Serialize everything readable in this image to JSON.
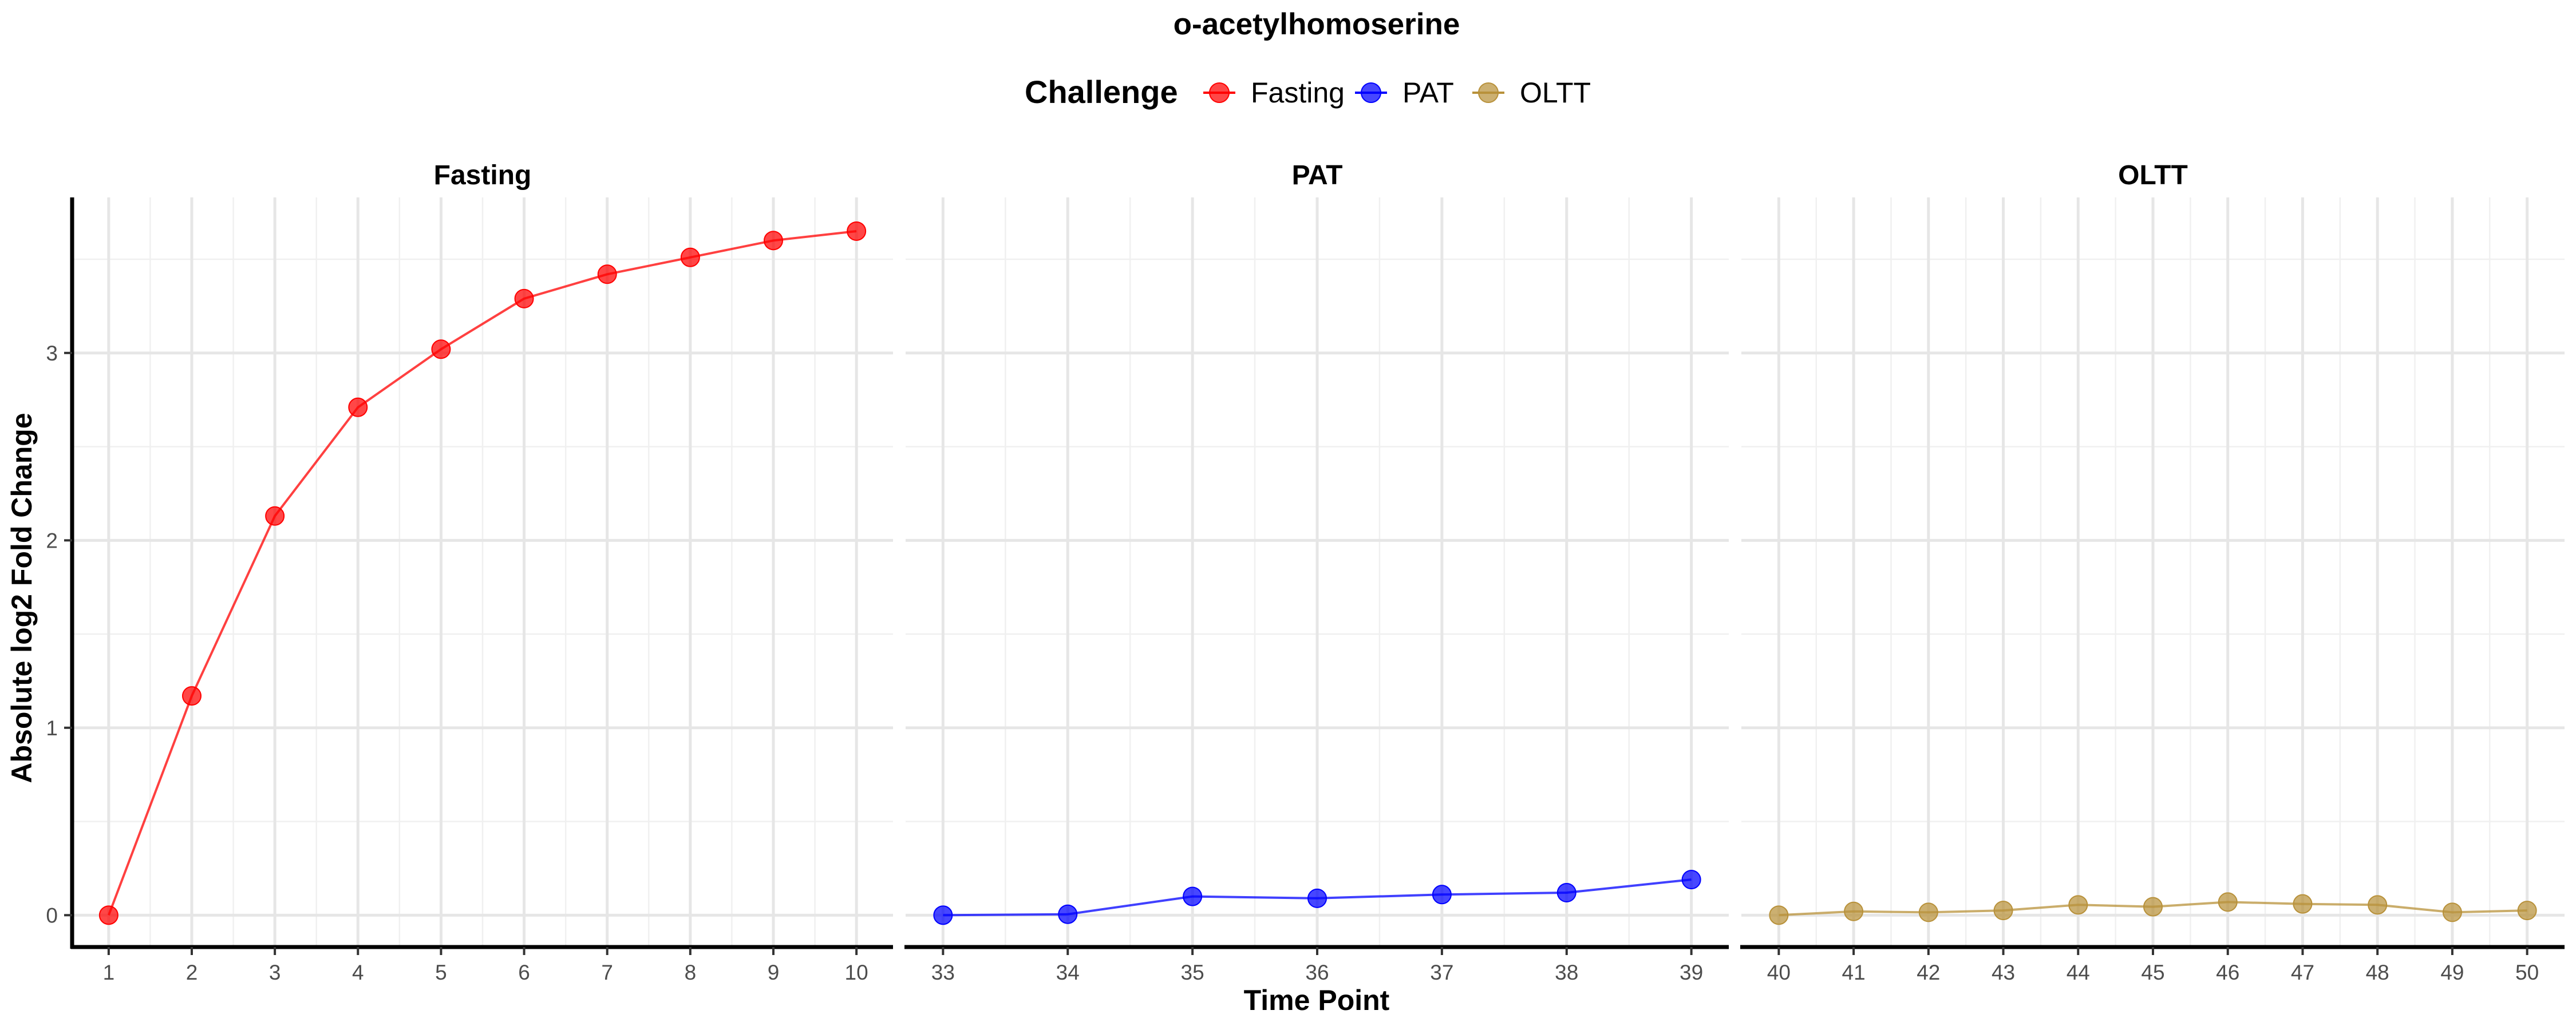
{
  "chart_data": {
    "type": "line",
    "title": "o-acetylhomoserine",
    "xlabel": "Time Point",
    "ylabel": "Absolute log2 Fold Change",
    "ylim": [
      -0.17,
      3.83
    ],
    "y_ticks": [
      0,
      1,
      2,
      3
    ],
    "grid": true,
    "legend": {
      "title": "Challenge",
      "position": "top",
      "entries": [
        "Fasting",
        "PAT",
        "OLTT"
      ]
    },
    "facets": [
      {
        "name": "Fasting",
        "color": "#FF0000",
        "xlim": [
          0.56,
          10.44
        ],
        "x_ticks": [
          1,
          2,
          3,
          4,
          5,
          6,
          7,
          8,
          9,
          10
        ],
        "x": [
          1,
          2,
          3,
          4,
          5,
          6,
          7,
          8,
          9,
          10
        ],
        "values": [
          0.0,
          1.17,
          2.13,
          2.71,
          3.02,
          3.29,
          3.42,
          3.51,
          3.6,
          3.65
        ]
      },
      {
        "name": "PAT",
        "color": "#0000FF",
        "xlim": [
          32.7,
          39.3
        ],
        "x_ticks": [
          33,
          34,
          35,
          36,
          37,
          38,
          39
        ],
        "x": [
          33,
          34,
          35,
          36,
          37,
          38,
          39
        ],
        "values": [
          0.0,
          0.005,
          0.1,
          0.09,
          0.11,
          0.12,
          0.19
        ]
      },
      {
        "name": "OLTT",
        "color": "#B8913A",
        "xlim": [
          39.5,
          50.5
        ],
        "x_ticks": [
          40,
          41,
          42,
          43,
          44,
          45,
          46,
          47,
          48,
          49,
          50
        ],
        "x": [
          40,
          41,
          42,
          43,
          44,
          45,
          46,
          47,
          48,
          49,
          50
        ],
        "values": [
          0.0,
          0.02,
          0.015,
          0.025,
          0.055,
          0.045,
          0.07,
          0.06,
          0.055,
          0.015,
          0.025
        ]
      }
    ]
  }
}
